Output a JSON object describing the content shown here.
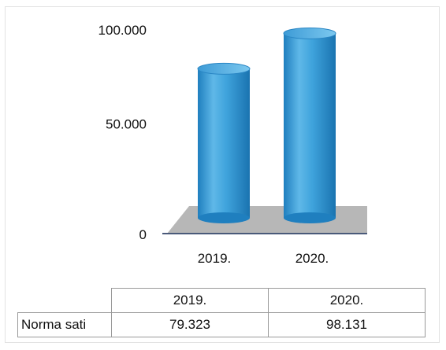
{
  "chart_data": {
    "type": "bar",
    "categories": [
      "2019.",
      "2020."
    ],
    "series": [
      {
        "name": "Norma sati",
        "values": [
          79323,
          98131
        ]
      }
    ],
    "value_labels": [
      "79.323",
      "98.131"
    ],
    "yticks": [
      {
        "value": 0,
        "label": "0"
      },
      {
        "value": 50000,
        "label": "50.000"
      },
      {
        "value": 100000,
        "label": "100.000"
      }
    ],
    "ylim": [
      0,
      100000
    ],
    "grid": false,
    "style": "3d-cylinder",
    "bar_color": "#3f9fd6",
    "floor_color": "#b7b7b7"
  },
  "data_table": {
    "headers": [
      "2019.",
      "2020."
    ],
    "row_label": "Norma sati",
    "values": [
      "79.323",
      "98.131"
    ]
  }
}
